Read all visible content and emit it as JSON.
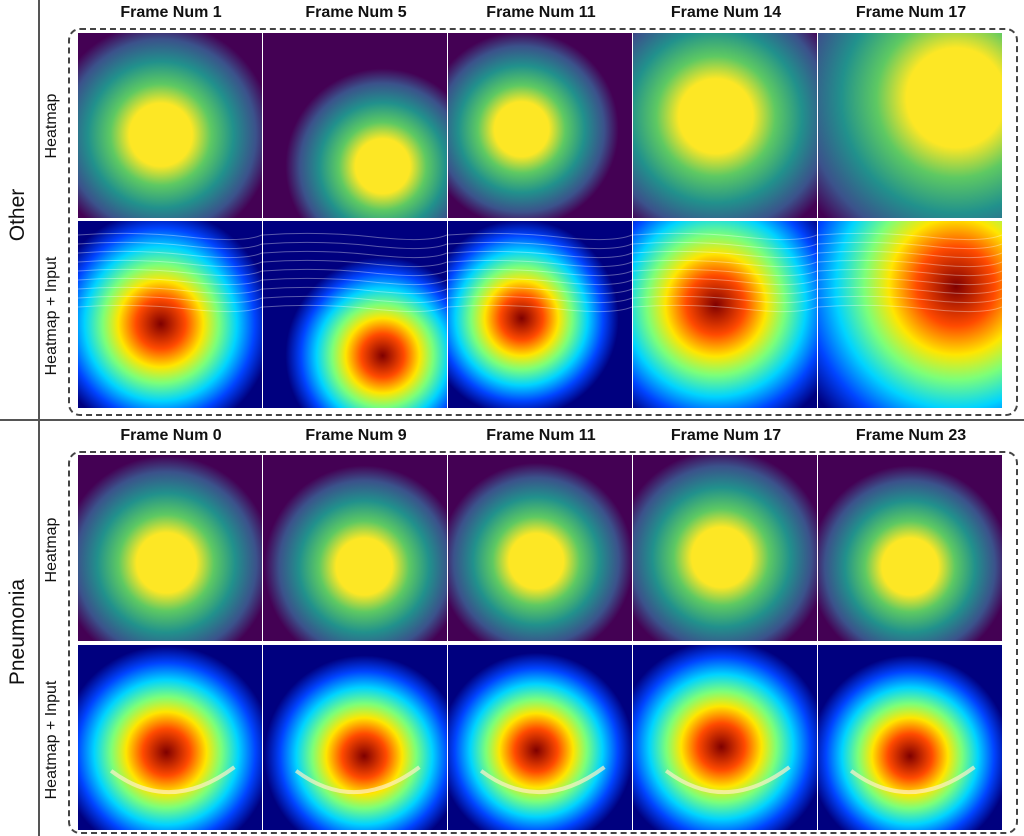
{
  "panels": [
    {
      "label": "Other",
      "row_labels": [
        "Heatmap",
        "Heatmap + Input"
      ],
      "frames": [
        "Frame Num 1",
        "Frame Num 5",
        "Frame Num 11",
        "Frame Num 14",
        "Frame Num 17"
      ]
    },
    {
      "label": "Pneumonia",
      "row_labels": [
        "Heatmap",
        "Heatmap + Input"
      ],
      "frames": [
        "Frame Num 0",
        "Frame Num 9",
        "Frame Num 11",
        "Frame Num 17",
        "Frame Num 23"
      ]
    }
  ],
  "colors": {
    "viridis": [
      "#440154",
      "#3b528b",
      "#21918c",
      "#5ec962",
      "#fde725"
    ],
    "jet": [
      "#00007f",
      "#0044ff",
      "#00d4ff",
      "#7cff79",
      "#ffe600",
      "#ff4a00",
      "#7f0000"
    ]
  }
}
